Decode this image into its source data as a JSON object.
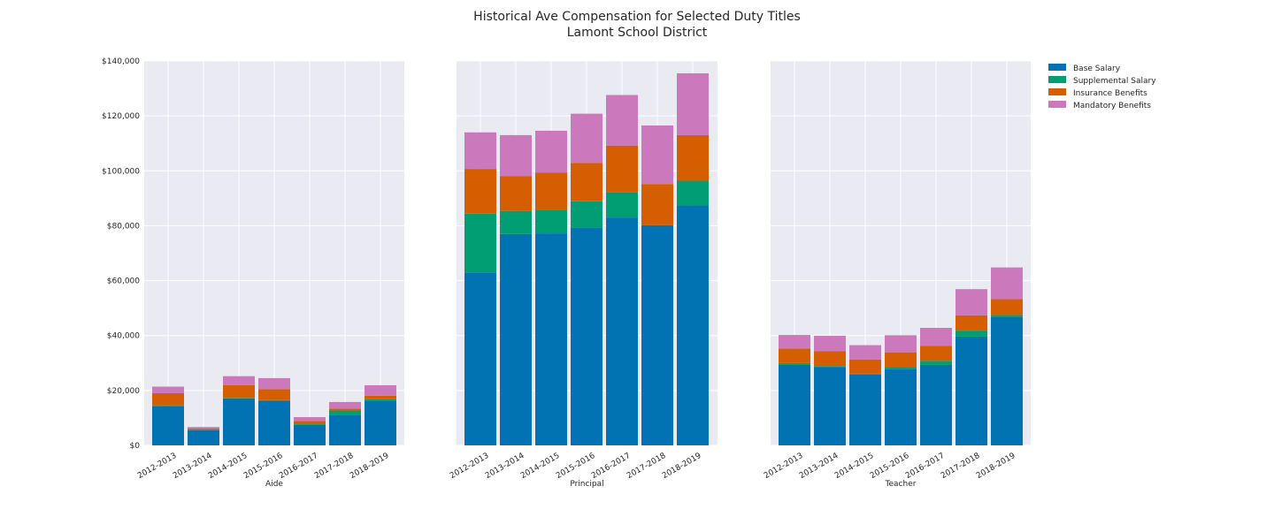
{
  "title": "Historical Ave Compensation for Selected Duty Titles",
  "subtitle": "Lamont School District",
  "colors": {
    "background_panel": "#eaeaf2",
    "grid": "#ffffff",
    "base": "#0173b2",
    "supplemental": "#029e73",
    "insurance": "#d55e00",
    "mandatory": "#cc78bc"
  },
  "chart_data": [
    {
      "type": "bar",
      "stacked": true,
      "xlabel": "Aide",
      "categories": [
        "2012-2013",
        "2013-2014",
        "2014-2015",
        "2015-2016",
        "2016-2017",
        "2017-2018",
        "2018-2019"
      ],
      "ylim": [
        0,
        140000
      ],
      "yticks": [
        "$0",
        "$20,000",
        "$40,000",
        "$60,000",
        "$80,000",
        "$100,000",
        "$120,000",
        "$140,000"
      ],
      "series": [
        {
          "name": "Base Salary",
          "values": [
            14200,
            5600,
            17100,
            16300,
            7400,
            11200,
            16300
          ]
        },
        {
          "name": "Supplemental Salary",
          "values": [
            400,
            100,
            200,
            200,
            300,
            1500,
            500
          ]
        },
        {
          "name": "Insurance Benefits",
          "values": [
            4400,
            500,
            4600,
            4000,
            1200,
            700,
            1300
          ]
        },
        {
          "name": "Mandatory Benefits",
          "values": [
            2400,
            500,
            3300,
            4000,
            1400,
            2400,
            3800
          ]
        }
      ]
    },
    {
      "type": "bar",
      "stacked": true,
      "xlabel": "Principal",
      "categories": [
        "2012-2013",
        "2013-2014",
        "2014-2015",
        "2015-2016",
        "2016-2017",
        "2017-2018",
        "2018-2019"
      ],
      "ylim": [
        0,
        140000
      ],
      "series": [
        {
          "name": "Base Salary",
          "values": [
            63000,
            77000,
            77200,
            79400,
            83000,
            80200,
            87400
          ]
        },
        {
          "name": "Supplemental Salary",
          "values": [
            21400,
            8400,
            8600,
            9500,
            9300,
            0,
            9000
          ]
        },
        {
          "name": "Insurance Benefits",
          "values": [
            16300,
            12600,
            13600,
            14000,
            16900,
            15000,
            16600
          ]
        },
        {
          "name": "Mandatory Benefits",
          "values": [
            13300,
            15000,
            15200,
            17900,
            18400,
            21300,
            22500
          ]
        }
      ]
    },
    {
      "type": "bar",
      "stacked": true,
      "xlabel": "Teacher",
      "categories": [
        "2012-2013",
        "2013-2014",
        "2014-2015",
        "2015-2016",
        "2016-2017",
        "2017-2018",
        "2018-2019"
      ],
      "ylim": [
        0,
        140000
      ],
      "series": [
        {
          "name": "Base Salary",
          "values": [
            29300,
            28600,
            25800,
            27700,
            29300,
            39600,
            46800
          ]
        },
        {
          "name": "Supplemental Salary",
          "values": [
            700,
            300,
            300,
            900,
            1500,
            2200,
            700
          ]
        },
        {
          "name": "Insurance Benefits",
          "values": [
            5300,
            5400,
            5200,
            5300,
            5500,
            5600,
            5800
          ]
        },
        {
          "name": "Mandatory Benefits",
          "values": [
            4900,
            5600,
            5200,
            6200,
            6500,
            9500,
            11500
          ]
        }
      ]
    }
  ],
  "legend": {
    "placement": "right",
    "items": [
      "Base Salary",
      "Supplemental Salary",
      "Insurance Benefits",
      "Mandatory Benefits"
    ]
  }
}
